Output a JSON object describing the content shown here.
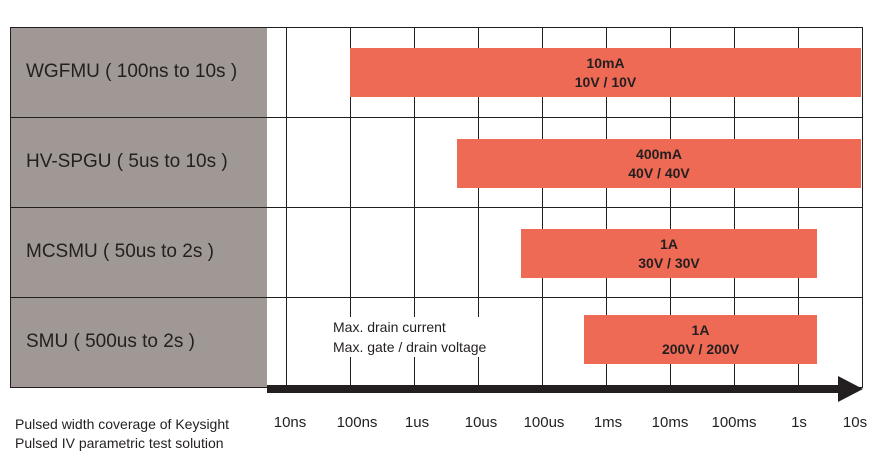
{
  "rows": [
    {
      "label": "WGFMU ( 100ns to 10s )",
      "current": "10mA",
      "voltage": "10V / 10V"
    },
    {
      "label": "HV-SPGU ( 5us to 10s )",
      "current": "400mA",
      "voltage": "40V / 40V"
    },
    {
      "label": "MCSMU ( 50us to 2s )",
      "current": "1A",
      "voltage": "30V / 30V"
    },
    {
      "label": "SMU ( 500us to 2s )",
      "current": "1A",
      "voltage": "200V / 200V"
    }
  ],
  "legend": {
    "line1": "Max. drain current",
    "line2": "Max. gate / drain voltage"
  },
  "axis": {
    "ticks": [
      "10ns",
      "100ns",
      "1us",
      "10us",
      "100us",
      "1ms",
      "10ms",
      "100ms",
      "1s",
      "10s"
    ]
  },
  "footer": {
    "line1": "Pulsed width coverage of Keysight",
    "line2": "Pulsed IV parametric test solution"
  },
  "colors": {
    "bar": "#ef6a55",
    "sidebar": "#a09894",
    "line": "#231f20"
  }
}
